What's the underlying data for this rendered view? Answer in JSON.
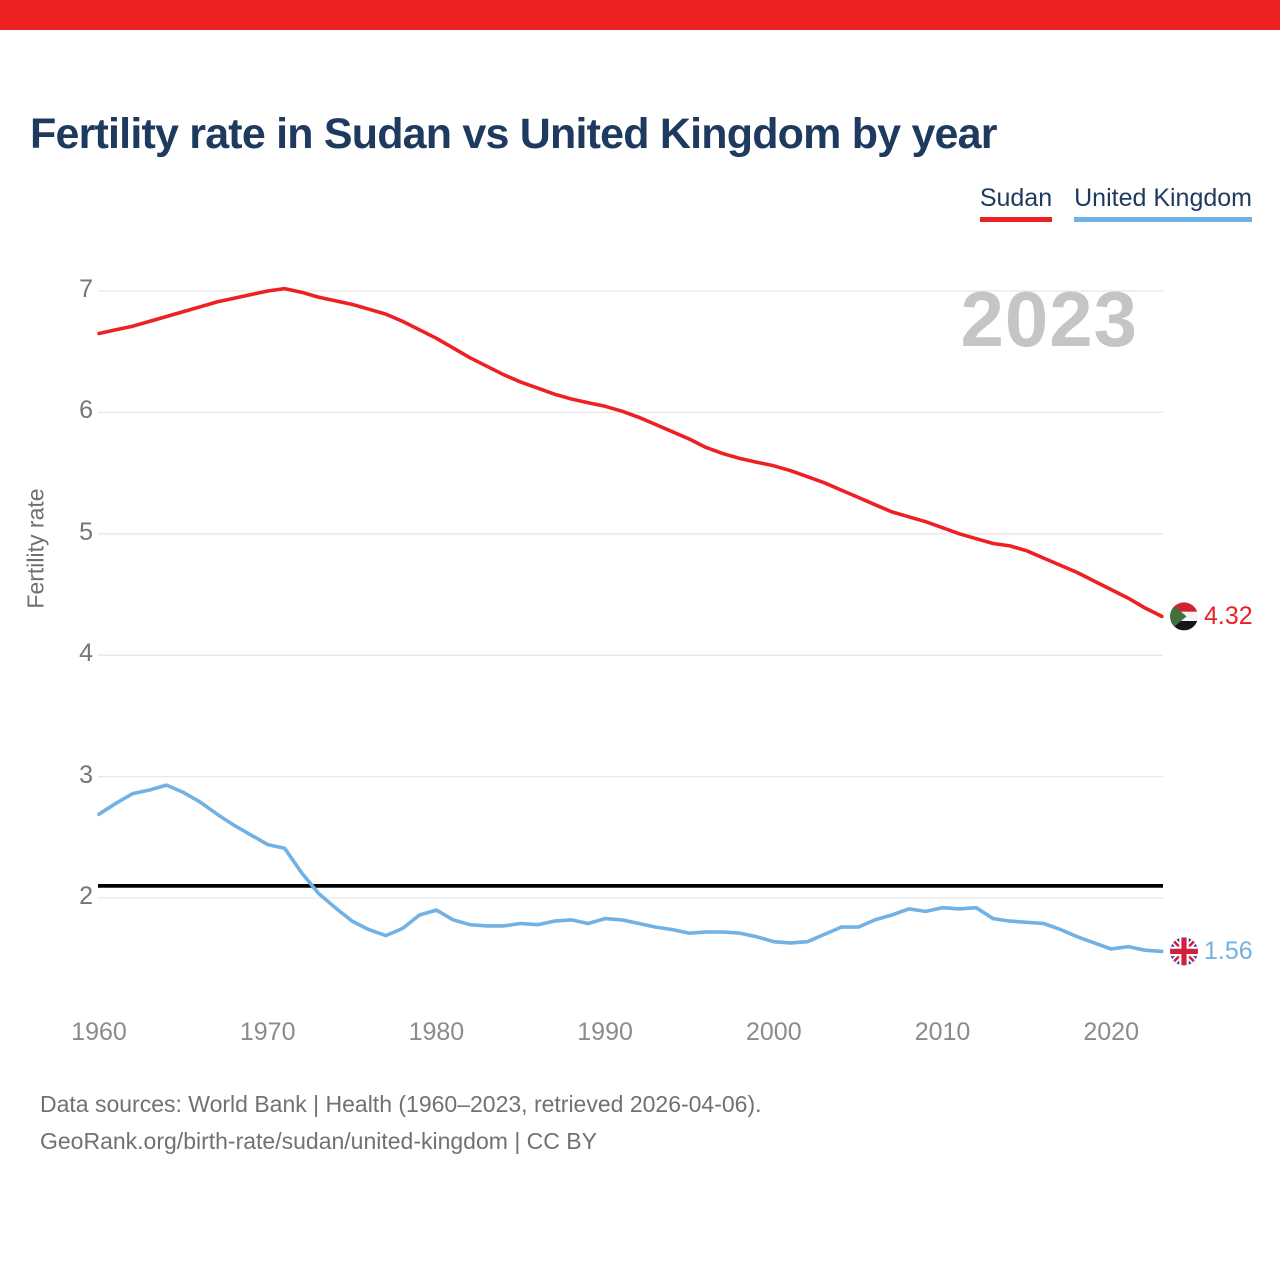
{
  "page": {
    "watermark_year": "2023",
    "top_bar_color": "#ed2124"
  },
  "footer": {
    "line1": "Data sources: World Bank | Health (1960–2023, retrieved 2026-04-06).",
    "line2": "GeoRank.org/birth-rate/sudan/united-kingdom | CC BY"
  },
  "chart_data": {
    "type": "line",
    "title": "Fertility rate in Sudan vs United Kingdom by year",
    "xlabel": "",
    "ylabel": "Fertility rate",
    "ylim": [
      1.1,
      7.5
    ],
    "grid": true,
    "legend_position": "top-right",
    "yticks": [
      7,
      6,
      5,
      4,
      3,
      2
    ],
    "xticks": [
      1960,
      1970,
      1980,
      1990,
      2000,
      2010,
      2020
    ],
    "reference_line": {
      "value": 2.1,
      "color": "#000000"
    },
    "gridline_color": "#e7e7e7",
    "x": [
      1960,
      1961,
      1962,
      1963,
      1964,
      1965,
      1966,
      1967,
      1968,
      1969,
      1970,
      1971,
      1972,
      1973,
      1974,
      1975,
      1976,
      1977,
      1978,
      1979,
      1980,
      1981,
      1982,
      1983,
      1984,
      1985,
      1986,
      1987,
      1988,
      1989,
      1990,
      1991,
      1992,
      1993,
      1994,
      1995,
      1996,
      1997,
      1998,
      1999,
      2000,
      2001,
      2002,
      2003,
      2004,
      2005,
      2006,
      2007,
      2008,
      2009,
      2010,
      2011,
      2012,
      2013,
      2014,
      2015,
      2016,
      2017,
      2018,
      2019,
      2020,
      2021,
      2022,
      2023
    ],
    "series": [
      {
        "name": "Sudan",
        "color": "#ed2124",
        "end_label": "4.32",
        "flag": "sudan",
        "values": [
          6.65,
          6.68,
          6.71,
          6.75,
          6.79,
          6.83,
          6.87,
          6.91,
          6.94,
          6.97,
          7.0,
          7.02,
          6.99,
          6.95,
          6.92,
          6.89,
          6.85,
          6.81,
          6.75,
          6.68,
          6.61,
          6.53,
          6.45,
          6.38,
          6.31,
          6.25,
          6.2,
          6.15,
          6.11,
          6.08,
          6.05,
          6.01,
          5.96,
          5.9,
          5.84,
          5.78,
          5.71,
          5.66,
          5.62,
          5.59,
          5.56,
          5.52,
          5.47,
          5.42,
          5.36,
          5.3,
          5.24,
          5.18,
          5.14,
          5.1,
          5.05,
          5.0,
          4.96,
          4.92,
          4.9,
          4.86,
          4.8,
          4.74,
          4.68,
          4.61,
          4.54,
          4.47,
          4.39,
          4.32
        ]
      },
      {
        "name": "United Kingdom",
        "color": "#72b1e3",
        "end_label": "1.56",
        "flag": "uk",
        "values": [
          2.69,
          2.78,
          2.86,
          2.89,
          2.93,
          2.87,
          2.79,
          2.69,
          2.6,
          2.52,
          2.44,
          2.41,
          2.21,
          2.04,
          1.92,
          1.81,
          1.74,
          1.69,
          1.75,
          1.86,
          1.9,
          1.82,
          1.78,
          1.77,
          1.77,
          1.79,
          1.78,
          1.81,
          1.82,
          1.79,
          1.83,
          1.82,
          1.79,
          1.76,
          1.74,
          1.71,
          1.72,
          1.72,
          1.71,
          1.68,
          1.64,
          1.63,
          1.64,
          1.7,
          1.76,
          1.76,
          1.82,
          1.86,
          1.91,
          1.89,
          1.92,
          1.91,
          1.92,
          1.83,
          1.81,
          1.8,
          1.79,
          1.74,
          1.68,
          1.63,
          1.58,
          1.6,
          1.57,
          1.56
        ]
      }
    ]
  }
}
